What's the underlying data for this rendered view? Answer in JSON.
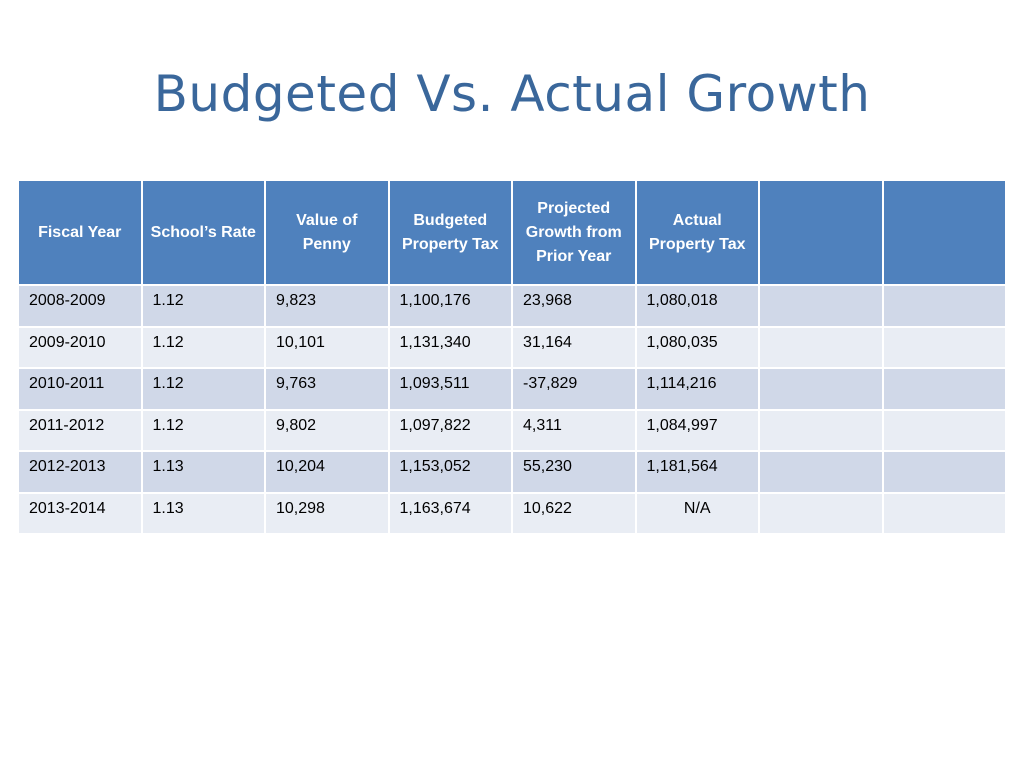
{
  "title": "Budgeted Vs. Actual Growth",
  "table": {
    "headers": [
      "Fiscal Year",
      "School’s Rate",
      "Value of Penny",
      "Budgeted Property Tax",
      "Projected Growth from Prior Year",
      "Actual Property Tax",
      "",
      ""
    ],
    "rows": [
      [
        "2008-2009",
        "1.12",
        "9,823",
        "1,100,176",
        "23,968",
        "1,080,018",
        "",
        ""
      ],
      [
        "2009-2010",
        "1.12",
        "10,101",
        "1,131,340",
        "31,164",
        "1,080,035",
        "",
        ""
      ],
      [
        "2010-2011",
        "1.12",
        "9,763",
        "1,093,511",
        "-37,829",
        "1,114,216",
        "",
        ""
      ],
      [
        "2011-2012",
        "1.12",
        "9,802",
        "1,097,822",
        "4,311",
        "1,084,997",
        "",
        ""
      ],
      [
        "2012-2013",
        "1.13",
        "10,204",
        "1,153,052",
        "55,230",
        "1,181,564",
        "",
        ""
      ],
      [
        "2013-2014",
        "1.13",
        "10,298",
        "1,163,674",
        "10,622",
        "N/A",
        "",
        ""
      ]
    ]
  },
  "colors": {
    "title": "#3a679b",
    "header_bg": "#4f81bd",
    "row_odd": "#d0d8e8",
    "row_even": "#e9edf4"
  }
}
